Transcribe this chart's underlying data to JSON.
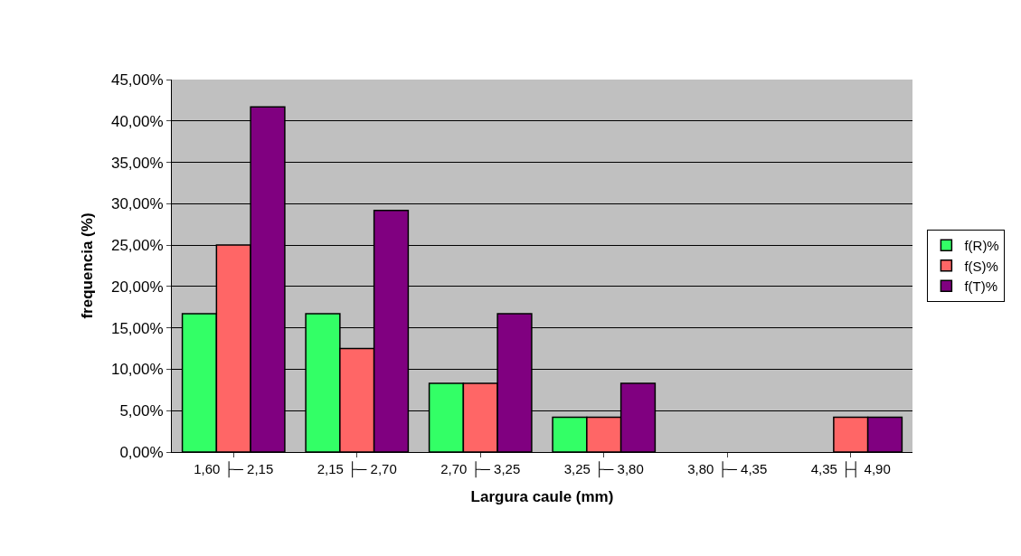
{
  "chart_data": {
    "type": "bar",
    "xlabel": "Largura caule (mm)",
    "ylabel": "frequencia (%)",
    "categories": [
      "1,60 ├─ 2,15",
      "2,15 ├─ 2,70",
      "2,70 ├─ 3,25",
      "3,25 ├─ 3,80",
      "3,80 ├─ 4,35",
      "4,35 ├┤ 4,90"
    ],
    "series": [
      {
        "name": "f(R)%",
        "color": "#33ff66",
        "values": [
          16.7,
          16.7,
          8.3,
          4.2,
          0,
          0
        ]
      },
      {
        "name": "f(S)%",
        "color": "#ff6666",
        "values": [
          25.0,
          12.5,
          8.3,
          4.2,
          0,
          4.2
        ]
      },
      {
        "name": "f(T)%",
        "color": "#800080",
        "values": [
          41.7,
          29.2,
          16.7,
          8.3,
          0,
          4.2
        ]
      }
    ],
    "ylim": [
      0,
      45
    ],
    "yticks": [
      {
        "value": 0,
        "label": "0,00%"
      },
      {
        "value": 5,
        "label": "5,00%"
      },
      {
        "value": 10,
        "label": "10,00%"
      },
      {
        "value": 15,
        "label": "15,00%"
      },
      {
        "value": 20,
        "label": "20,00%"
      },
      {
        "value": 25,
        "label": "25,00%"
      },
      {
        "value": 30,
        "label": "30,00%"
      },
      {
        "value": 35,
        "label": "35,00%"
      },
      {
        "value": 40,
        "label": "40,00%"
      },
      {
        "value": 45,
        "label": "45,00%"
      }
    ],
    "grid": "y",
    "legend": "right"
  }
}
